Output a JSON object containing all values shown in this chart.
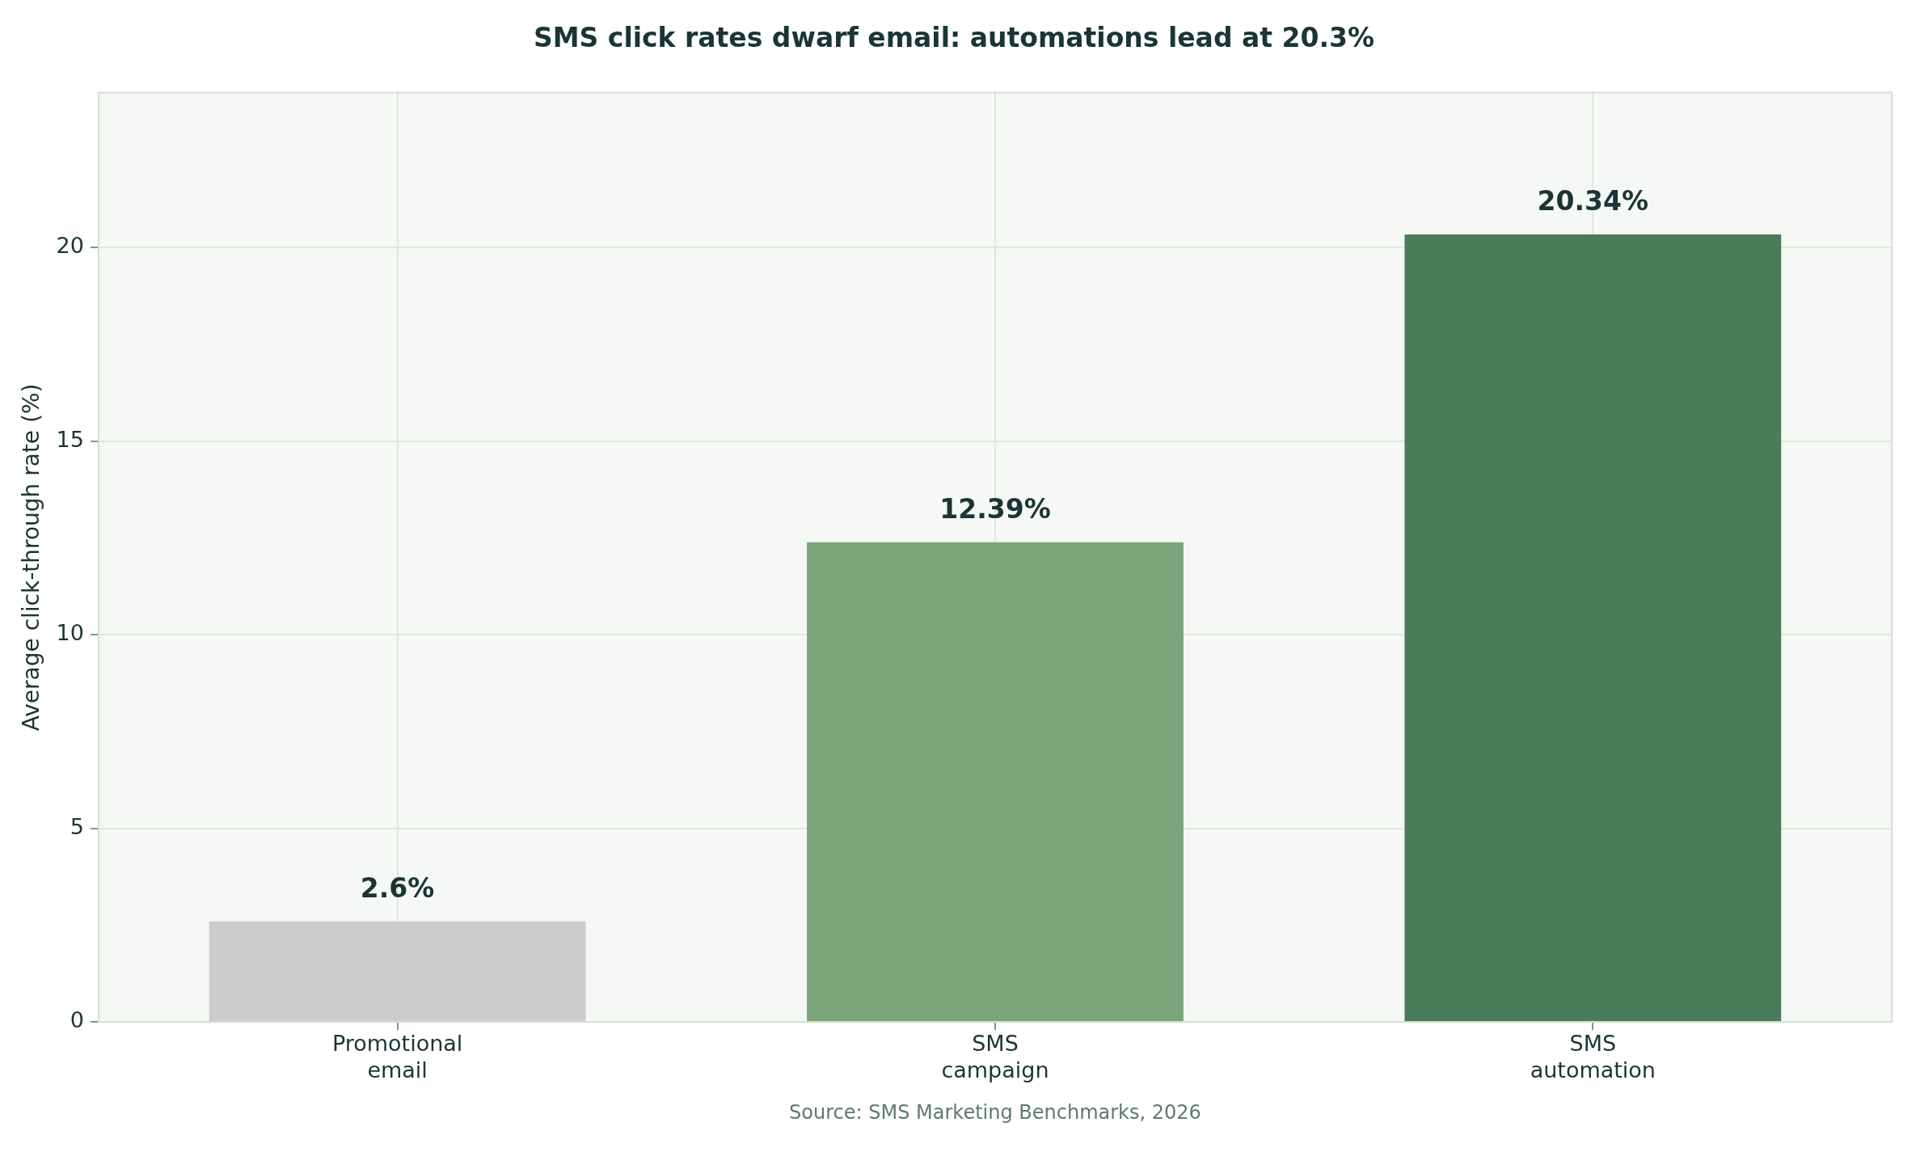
{
  "chart_data": {
    "type": "bar",
    "title": "SMS click rates dwarf email: automations lead at 20.3%",
    "ylabel": "Average click-through rate (%)",
    "categories": [
      "Promotional email",
      "SMS campaign",
      "SMS automation"
    ],
    "values": [
      2.6,
      12.39,
      20.34
    ],
    "colors": [
      "#cccccc",
      "#7aa47a",
      "#4a7c59"
    ],
    "value_labels": [
      "2.6%",
      "12.39%",
      "20.34%"
    ],
    "ylim": [
      0,
      24
    ],
    "yticks": [
      0,
      5,
      10,
      15,
      20
    ],
    "grid": true,
    "legend": false,
    "annotations": [
      "Source: SMS Marketing Benchmarks, 2026"
    ]
  }
}
